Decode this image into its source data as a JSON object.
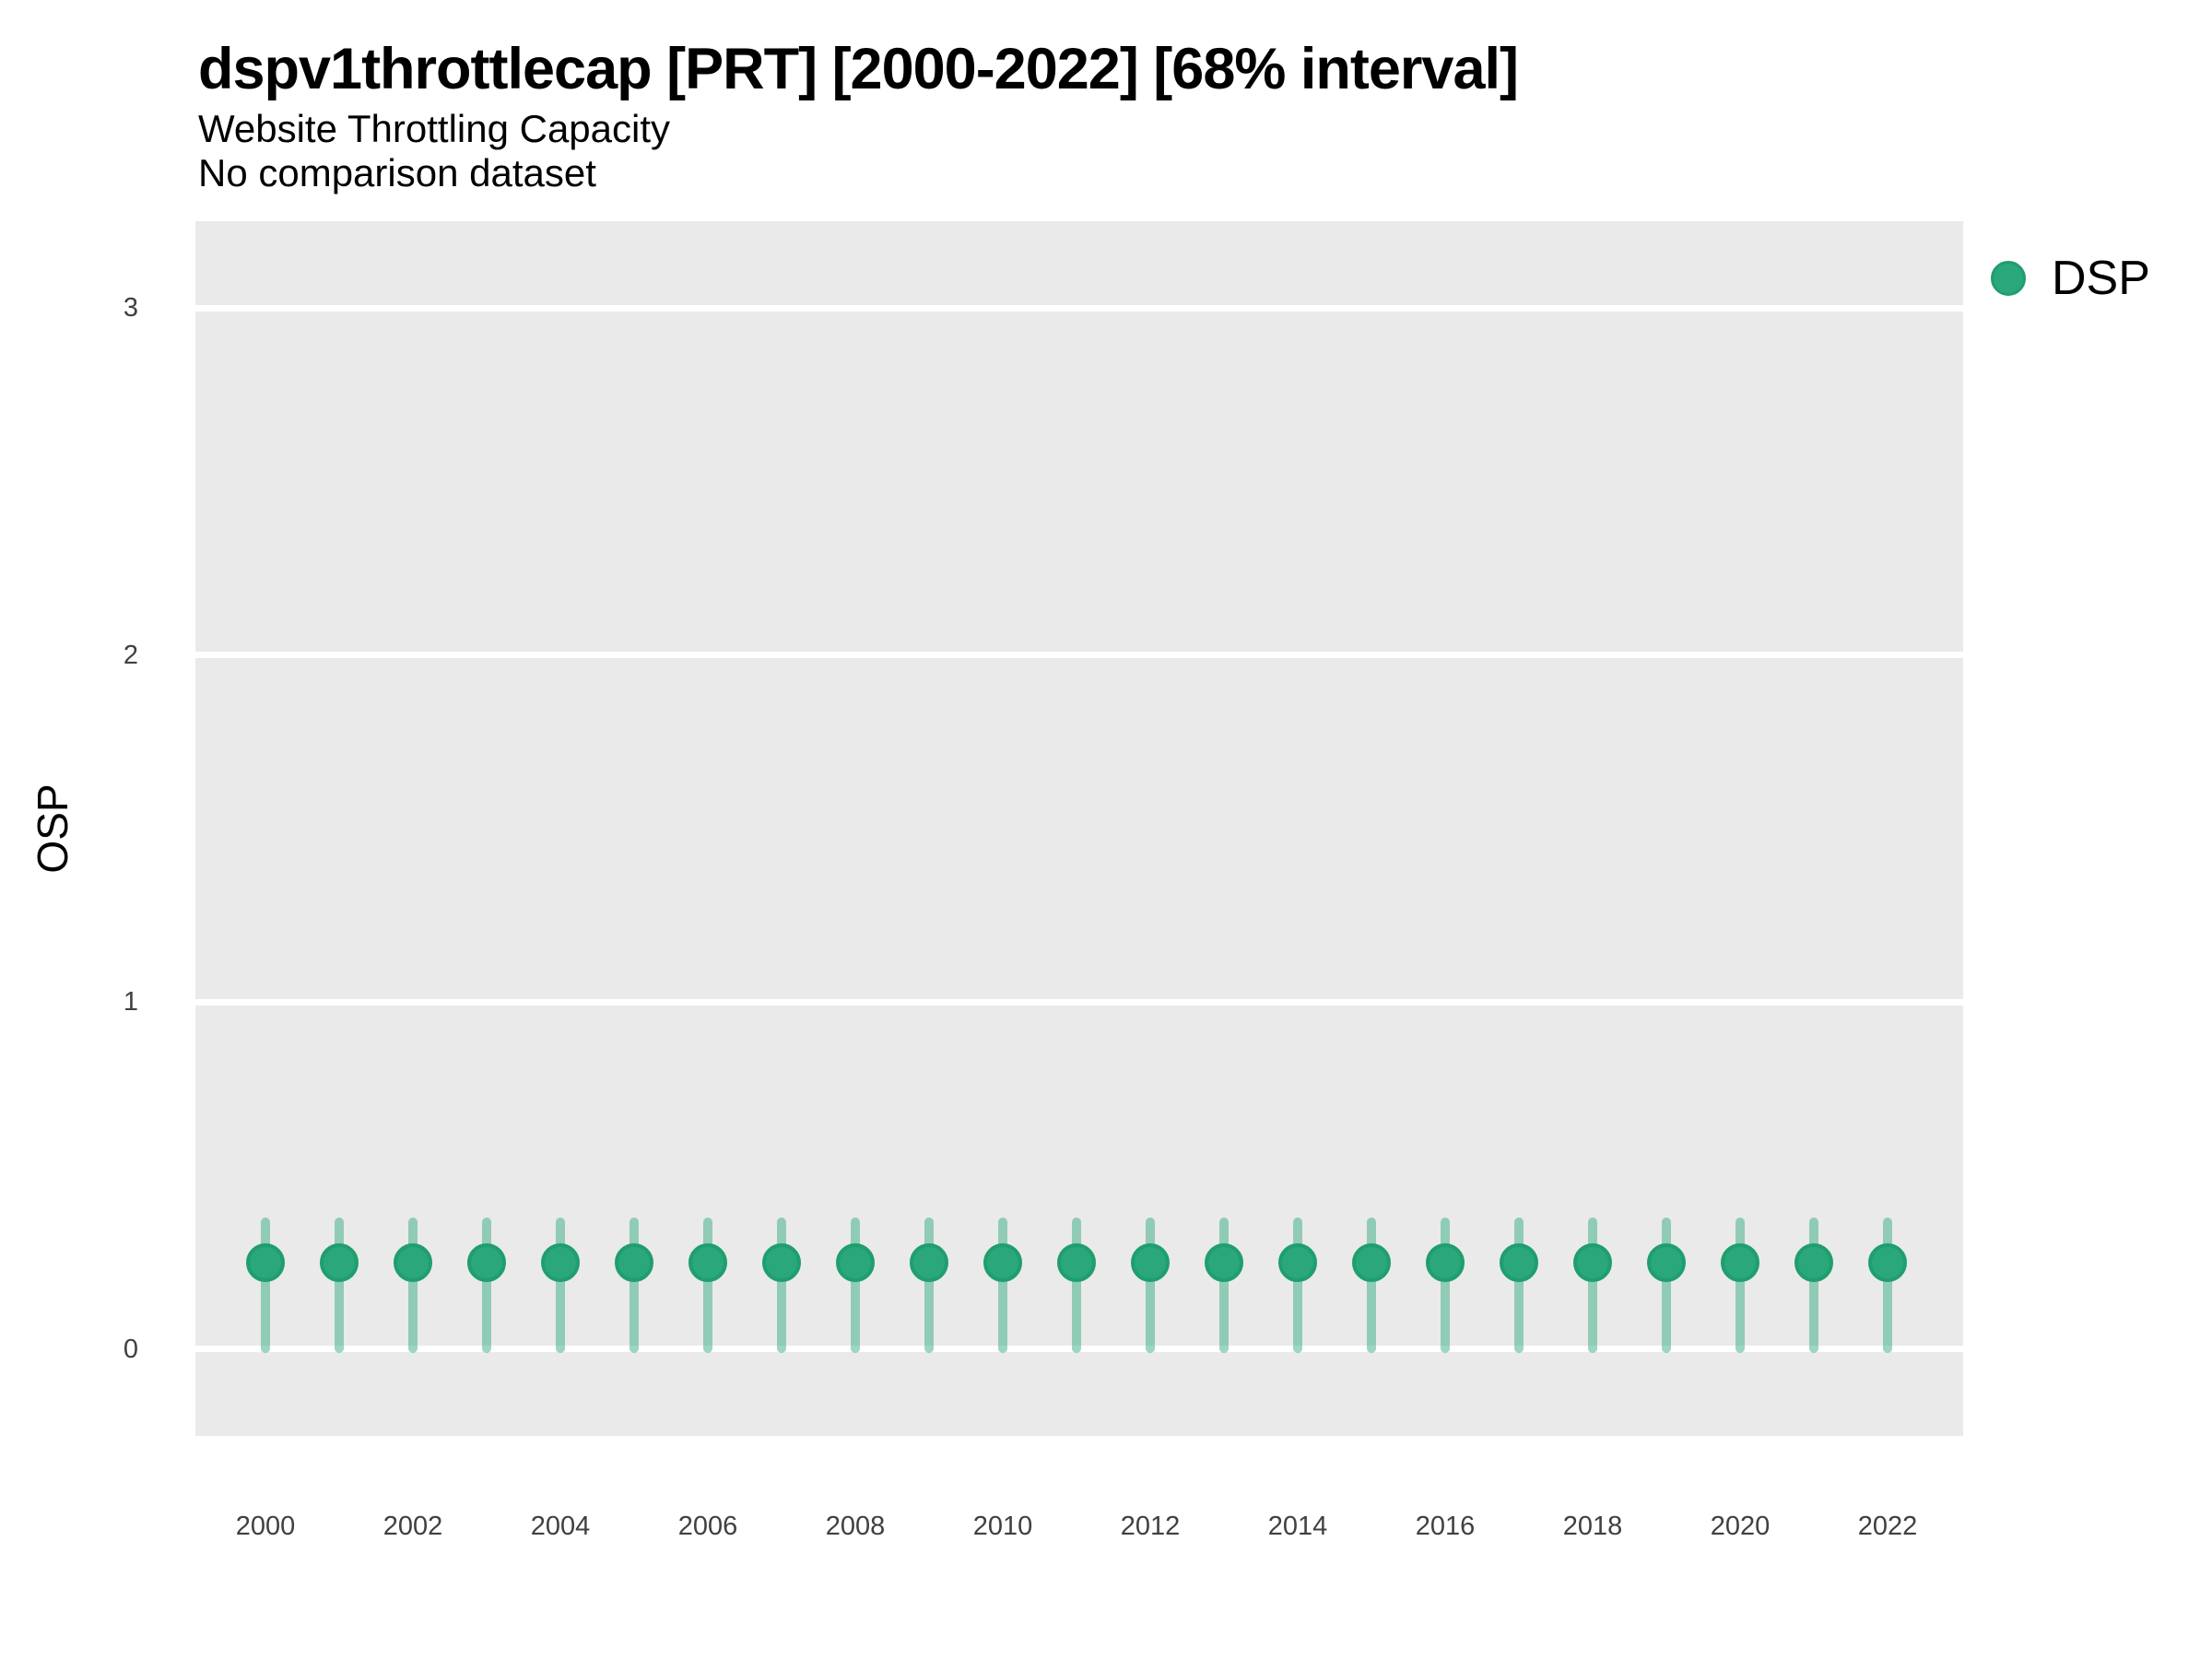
{
  "header": {
    "title": "dspv1throttlecap [PRT] [2000-2022] [68% interval]",
    "subtitle": "Website Throttling Capacity",
    "comparison_note": "No comparison dataset"
  },
  "legend": {
    "position": "right",
    "items": [
      {
        "label": "DSP",
        "marker": "circle-icon",
        "color": "#2aa87c"
      }
    ]
  },
  "chart_data": {
    "type": "scatter",
    "title": "dspv1throttlecap [PRT] [2000-2022] [68% interval]",
    "subtitle": "Website Throttling Capacity",
    "note": "No comparison dataset",
    "xlabel": "",
    "ylabel": "OSP",
    "interval_level": "68%",
    "x": [
      2000,
      2001,
      2002,
      2003,
      2004,
      2005,
      2006,
      2007,
      2008,
      2009,
      2010,
      2011,
      2012,
      2013,
      2014,
      2015,
      2016,
      2017,
      2018,
      2019,
      2020,
      2021,
      2022
    ],
    "series": [
      {
        "name": "DSP",
        "values": [
          0.25,
          0.25,
          0.25,
          0.25,
          0.25,
          0.25,
          0.25,
          0.25,
          0.25,
          0.25,
          0.25,
          0.25,
          0.25,
          0.25,
          0.25,
          0.25,
          0.25,
          0.25,
          0.25,
          0.25,
          0.25,
          0.25,
          0.25
        ],
        "interval_low": [
          0,
          0,
          0,
          0,
          0,
          0,
          0,
          0,
          0,
          0,
          0,
          0,
          0,
          0,
          0,
          0,
          0,
          0,
          0,
          0,
          0,
          0,
          0
        ],
        "interval_high": [
          0.38,
          0.38,
          0.38,
          0.38,
          0.38,
          0.38,
          0.38,
          0.38,
          0.38,
          0.38,
          0.38,
          0.38,
          0.38,
          0.38,
          0.38,
          0.38,
          0.38,
          0.38,
          0.38,
          0.38,
          0.38,
          0.38,
          0.38
        ]
      }
    ],
    "ylim": [
      -0.25,
      3.25
    ],
    "yticks": [
      0,
      1,
      2,
      3
    ],
    "xtick_labels": [
      2000,
      2002,
      2004,
      2006,
      2008,
      2010,
      2012,
      2014,
      2016,
      2018,
      2020,
      2022
    ],
    "grid": "horizontal-major-white",
    "legend_position": "right",
    "colors": {
      "point_fill": "#2aa87c",
      "point_stroke": "#1f9e6e",
      "interval_bar": "rgba(42,168,124,0.47)",
      "panel_bg": "#EAEAEA",
      "gridline": "#ffffff"
    }
  }
}
